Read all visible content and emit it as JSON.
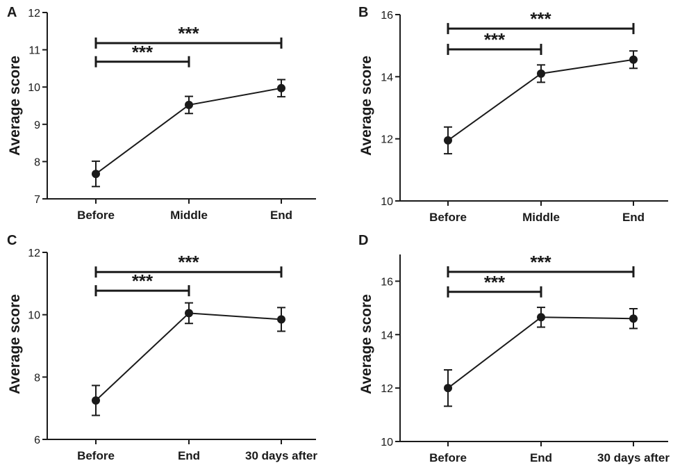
{
  "chart_data": [
    {
      "panel": "A",
      "type": "line",
      "ylabel": "Average score",
      "categories": [
        "Before",
        "Middle",
        "End"
      ],
      "values": [
        7.67,
        9.52,
        9.97
      ],
      "errors": [
        0.34,
        0.23,
        0.23
      ],
      "ylim": [
        7,
        12
      ],
      "yticks": [
        7,
        8,
        9,
        10,
        11,
        12
      ],
      "yticklabels": [
        "7",
        "8",
        "9",
        "10",
        "11",
        "12"
      ],
      "significance": [
        {
          "from": 0,
          "to": 2,
          "label": "***",
          "y": 11.18
        },
        {
          "from": 0,
          "to": 1,
          "label": "***",
          "y": 10.68
        }
      ]
    },
    {
      "panel": "B",
      "type": "line",
      "ylabel": "Average score",
      "categories": [
        "Before",
        "Middle",
        "End"
      ],
      "values": [
        11.95,
        14.1,
        14.55
      ],
      "errors": [
        0.43,
        0.28,
        0.28
      ],
      "ylim": [
        10,
        16
      ],
      "yticks": [
        10,
        12,
        14,
        16
      ],
      "yticklabels": [
        "10",
        "12",
        "14",
        "16"
      ],
      "significance": [
        {
          "from": 0,
          "to": 2,
          "label": "***",
          "y": 15.55
        },
        {
          "from": 0,
          "to": 1,
          "label": "***",
          "y": 14.88
        }
      ]
    },
    {
      "panel": "C",
      "type": "line",
      "ylabel": "Average score",
      "categories": [
        "Before",
        "End",
        "30 days after"
      ],
      "values": [
        7.25,
        10.05,
        9.85
      ],
      "errors": [
        0.48,
        0.33,
        0.38
      ],
      "ylim": [
        6,
        12
      ],
      "yticks": [
        6,
        8,
        10,
        12
      ],
      "yticklabels": [
        "6",
        "8",
        "10",
        "12"
      ],
      "significance": [
        {
          "from": 0,
          "to": 2,
          "label": "***",
          "y": 11.37
        },
        {
          "from": 0,
          "to": 1,
          "label": "***",
          "y": 10.77
        }
      ]
    },
    {
      "panel": "D",
      "type": "line",
      "ylabel": "Average score",
      "categories": [
        "Before",
        "End",
        "30 days after"
      ],
      "values": [
        12.0,
        14.65,
        14.6
      ],
      "errors": [
        0.68,
        0.37,
        0.37
      ],
      "ylim": [
        10,
        17
      ],
      "yticks": [
        10,
        12,
        14,
        16
      ],
      "yticklabels": [
        "10",
        "12",
        "14",
        "16"
      ],
      "significance": [
        {
          "from": 0,
          "to": 2,
          "label": "***",
          "y": 16.35
        },
        {
          "from": 0,
          "to": 1,
          "label": "***",
          "y": 15.6
        }
      ]
    }
  ]
}
